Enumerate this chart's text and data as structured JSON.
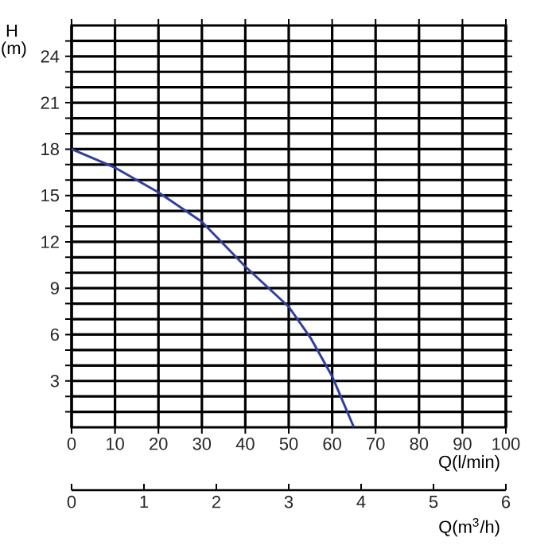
{
  "chart_data": {
    "type": "line",
    "xlabel": "Q(l/min)",
    "ylabel": "H (m)",
    "x2label": "Q(m$^{3}$/h)",
    "x": [
      0,
      10,
      20,
      30,
      40,
      45,
      50,
      55,
      60,
      65
    ],
    "series": [
      {
        "color": "#2e3f9e",
        "values": [
          18,
          16.8,
          15.2,
          13.3,
          10.4,
          9.1,
          7.8,
          5.8,
          3.3,
          0
        ]
      }
    ],
    "xlim": [
      0,
      100
    ],
    "xticks": [
      0,
      10,
      20,
      30,
      40,
      50,
      60,
      70,
      80,
      90,
      100
    ],
    "ylim": [
      0,
      26
    ],
    "yticks": [
      {
        "value": 1,
        "label": null
      },
      {
        "value": 2,
        "label": null
      },
      3,
      {
        "value": 4,
        "label": null
      },
      {
        "value": 5,
        "label": null
      },
      6,
      {
        "value": 7,
        "label": null
      },
      {
        "value": 8,
        "label": null
      },
      9,
      {
        "value": 10,
        "label": null
      },
      {
        "value": 11,
        "label": null
      },
      12,
      {
        "value": 13,
        "label": null
      },
      {
        "value": 14,
        "label": null
      },
      15,
      {
        "value": 16,
        "label": null
      },
      {
        "value": 17,
        "label": null
      },
      18,
      {
        "value": 19,
        "label": null
      },
      {
        "value": 20,
        "label": null
      },
      21,
      {
        "value": 22,
        "label": null
      },
      {
        "value": 23,
        "label": null
      },
      24,
      {
        "value": 25,
        "label": null
      }
    ],
    "x2lim": [
      0,
      6
    ],
    "x2ticks": [
      0,
      1,
      2,
      3,
      4,
      5,
      6
    ],
    "grid": true,
    "line_style": "solid",
    "marker": "none"
  }
}
